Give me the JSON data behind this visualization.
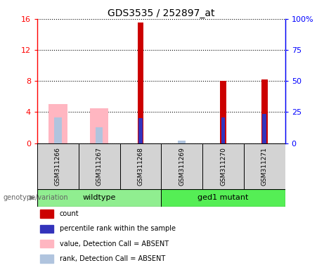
{
  "title": "GDS3535 / 252897_at",
  "samples": [
    "GSM311266",
    "GSM311267",
    "GSM311268",
    "GSM311269",
    "GSM311270",
    "GSM311271"
  ],
  "groups": [
    {
      "name": "wildtype",
      "indices": [
        0,
        1,
        2
      ],
      "color": "#90EE90"
    },
    {
      "name": "ged1 mutant",
      "indices": [
        3,
        4,
        5
      ],
      "color": "#55EE55"
    }
  ],
  "count_values": [
    null,
    null,
    15.5,
    null,
    8.0,
    8.2
  ],
  "percentile_values_right": [
    null,
    null,
    20.0,
    null,
    20.5,
    23.5
  ],
  "absent_value_values": [
    5.0,
    4.5,
    null,
    null,
    null,
    null
  ],
  "absent_rank_values_right": [
    20.5,
    12.5,
    null,
    2.0,
    null,
    null
  ],
  "ylim_left": [
    0,
    16
  ],
  "ylim_right": [
    0,
    100
  ],
  "yticks_left": [
    0,
    4,
    8,
    12,
    16
  ],
  "yticks_right": [
    0,
    25,
    50,
    75,
    100
  ],
  "ytick_labels_left": [
    "0",
    "4",
    "8",
    "12",
    "16"
  ],
  "ytick_labels_right": [
    "0",
    "25",
    "50",
    "75",
    "100%"
  ],
  "count_color": "#CC0000",
  "percentile_color": "#3333BB",
  "absent_value_color": "#FFB6C1",
  "absent_rank_color": "#B0C4DE",
  "group_label": "genotype/variation",
  "legend_items": [
    {
      "label": "count",
      "color": "#CC0000"
    },
    {
      "label": "percentile rank within the sample",
      "color": "#3333BB"
    },
    {
      "label": "value, Detection Call = ABSENT",
      "color": "#FFB6C1"
    },
    {
      "label": "rank, Detection Call = ABSENT",
      "color": "#B0C4DE"
    }
  ]
}
